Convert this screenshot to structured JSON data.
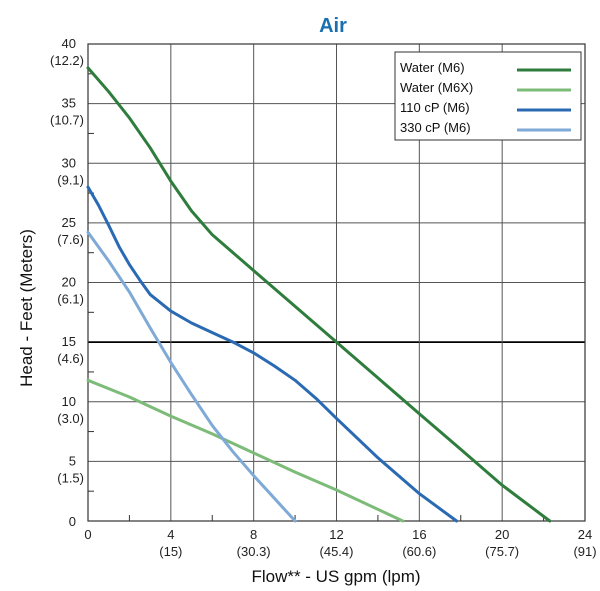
{
  "chart_data": {
    "type": "line",
    "title": "Air",
    "xlabel": "Flow** - US gpm (lpm)",
    "ylabel": "Head - Feet (Meters)",
    "xlim": [
      0,
      24
    ],
    "ylim": [
      0,
      40
    ],
    "x_ticks": [
      {
        "value": 0,
        "label": "0",
        "sublabel": ""
      },
      {
        "value": 4,
        "label": "4",
        "sublabel": "(15)"
      },
      {
        "value": 8,
        "label": "8",
        "sublabel": "(30.3)"
      },
      {
        "value": 12,
        "label": "12",
        "sublabel": "(45.4)"
      },
      {
        "value": 16,
        "label": "16",
        "sublabel": "(60.6)"
      },
      {
        "value": 20,
        "label": "20",
        "sublabel": "(75.7)"
      },
      {
        "value": 24,
        "label": "24",
        "sublabel": "(91)"
      }
    ],
    "y_ticks": [
      {
        "value": 0,
        "label": "0",
        "sublabel": ""
      },
      {
        "value": 5,
        "label": "5",
        "sublabel": "(1.5)"
      },
      {
        "value": 10,
        "label": "10",
        "sublabel": "(3.0)"
      },
      {
        "value": 15,
        "label": "15",
        "sublabel": "(4.6)"
      },
      {
        "value": 20,
        "label": "20",
        "sublabel": "(6.1)"
      },
      {
        "value": 25,
        "label": "25",
        "sublabel": "(7.6)"
      },
      {
        "value": 30,
        "label": "30",
        "sublabel": "(9.1)"
      },
      {
        "value": 35,
        "label": "35",
        "sublabel": "(10.7)"
      },
      {
        "value": 40,
        "label": "40",
        "sublabel": "(12.2)"
      }
    ],
    "grid": true,
    "legend_position": "top-right",
    "series": [
      {
        "name": "Water (M6)",
        "color": "#2e7d3c",
        "points": [
          [
            0,
            38
          ],
          [
            1,
            36
          ],
          [
            2,
            33.8
          ],
          [
            3,
            31.3
          ],
          [
            4,
            28.5
          ],
          [
            5,
            26
          ],
          [
            6,
            24
          ],
          [
            8,
            21
          ],
          [
            10,
            18
          ],
          [
            12,
            15
          ],
          [
            14,
            12
          ],
          [
            16,
            9
          ],
          [
            18,
            6
          ],
          [
            20,
            3
          ],
          [
            22.3,
            0
          ]
        ]
      },
      {
        "name": "Water (M6X)",
        "color": "#7dbb78",
        "points": [
          [
            0,
            11.8
          ],
          [
            2,
            10.4
          ],
          [
            4,
            8.8
          ],
          [
            6,
            7.3
          ],
          [
            8,
            5.7
          ],
          [
            10,
            4.1
          ],
          [
            12,
            2.6
          ],
          [
            15.2,
            0
          ]
        ]
      },
      {
        "name": "110 cP (M6)",
        "color": "#2a6ab3",
        "points": [
          [
            0,
            28
          ],
          [
            0.5,
            26.5
          ],
          [
            1,
            24.8
          ],
          [
            1.5,
            23
          ],
          [
            2,
            21.5
          ],
          [
            2.5,
            20.2
          ],
          [
            3,
            19
          ],
          [
            4,
            17.6
          ],
          [
            5,
            16.6
          ],
          [
            6,
            15.8
          ],
          [
            7,
            15
          ],
          [
            8,
            14.1
          ],
          [
            9,
            13
          ],
          [
            10,
            11.8
          ],
          [
            11,
            10.3
          ],
          [
            12,
            8.6
          ],
          [
            14,
            5.3
          ],
          [
            16,
            2.3
          ],
          [
            17.8,
            0
          ]
        ]
      },
      {
        "name": "330 cP (M6)",
        "color": "#7fa9d6",
        "points": [
          [
            0,
            24.2
          ],
          [
            1,
            21.8
          ],
          [
            2,
            19.2
          ],
          [
            3,
            16.2
          ],
          [
            4,
            13.3
          ],
          [
            5,
            10.6
          ],
          [
            6,
            8
          ],
          [
            7,
            5.8
          ],
          [
            8,
            3.8
          ],
          [
            9,
            1.9
          ],
          [
            10,
            0
          ]
        ]
      }
    ]
  }
}
